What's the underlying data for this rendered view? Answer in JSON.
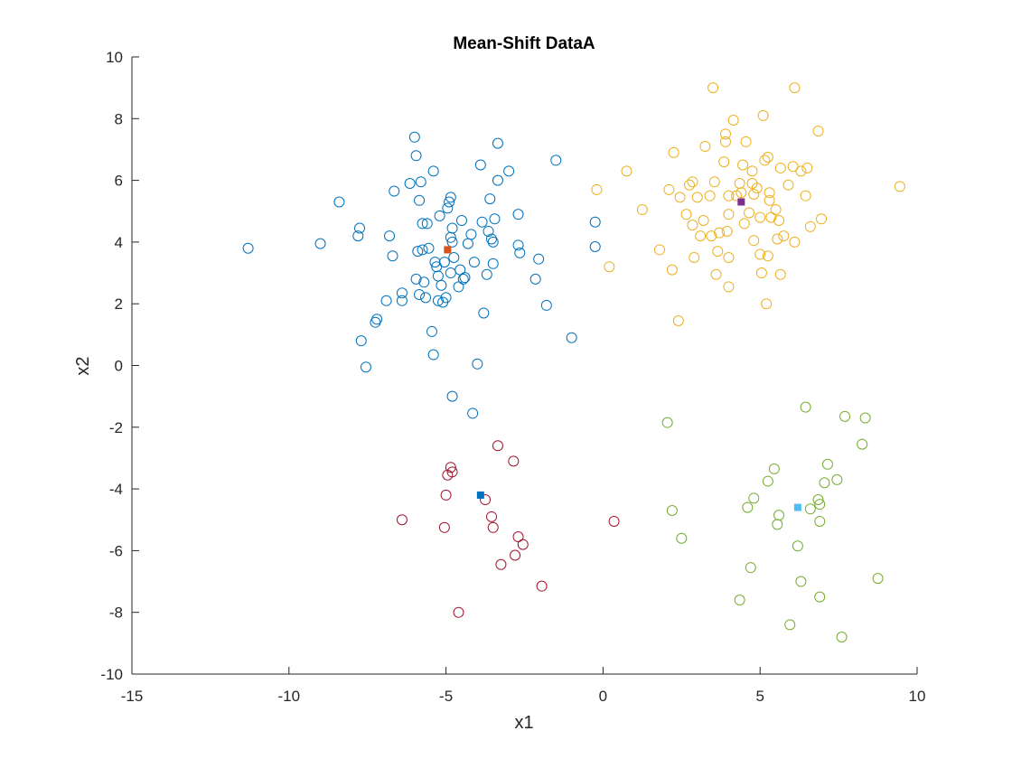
{
  "chart_data": {
    "type": "scatter",
    "title": "Mean-Shift DataA",
    "xlabel": "x1",
    "ylabel": "x2",
    "xlim": [
      -15,
      10
    ],
    "ylim": [
      -10,
      10
    ],
    "x_ticks": [
      "-15",
      "-10",
      "-5",
      "0",
      "5",
      "10"
    ],
    "y_ticks": [
      "-10",
      "-8",
      "-6",
      "-4",
      "-2",
      "0",
      "2",
      "4",
      "6",
      "8",
      "10"
    ],
    "grid": false,
    "series": [
      {
        "color": "#0072BD",
        "marker": "circle-open",
        "points": [
          [
            -11.3,
            3.8
          ],
          [
            -9.0,
            3.95
          ],
          [
            -8.4,
            5.3
          ],
          [
            -7.8,
            4.2
          ],
          [
            -7.75,
            4.45
          ],
          [
            -7.7,
            0.8
          ],
          [
            -7.55,
            -0.05
          ],
          [
            -7.2,
            1.5
          ],
          [
            -7.25,
            1.4
          ],
          [
            -6.9,
            2.1
          ],
          [
            -6.8,
            4.2
          ],
          [
            -6.7,
            3.55
          ],
          [
            -6.65,
            5.65
          ],
          [
            -6.4,
            2.1
          ],
          [
            -6.4,
            2.35
          ],
          [
            -6.15,
            5.9
          ],
          [
            -6.0,
            7.4
          ],
          [
            -5.95,
            6.8
          ],
          [
            -5.95,
            2.8
          ],
          [
            -5.9,
            3.7
          ],
          [
            -5.85,
            5.35
          ],
          [
            -5.85,
            2.3
          ],
          [
            -5.8,
            5.95
          ],
          [
            -5.75,
            4.6
          ],
          [
            -5.75,
            3.75
          ],
          [
            -5.7,
            2.7
          ],
          [
            -5.65,
            2.2
          ],
          [
            -5.6,
            4.6
          ],
          [
            -5.55,
            3.8
          ],
          [
            -5.45,
            1.1
          ],
          [
            -5.4,
            6.3
          ],
          [
            -5.4,
            0.35
          ],
          [
            -5.35,
            3.35
          ],
          [
            -5.3,
            3.2
          ],
          [
            -5.25,
            2.9
          ],
          [
            -5.25,
            2.1
          ],
          [
            -5.2,
            4.85
          ],
          [
            -5.15,
            2.6
          ],
          [
            -5.1,
            2.05
          ],
          [
            -5.05,
            3.35
          ],
          [
            -5.0,
            2.2
          ],
          [
            -4.95,
            5.1
          ],
          [
            -4.9,
            5.3
          ],
          [
            -4.85,
            5.45
          ],
          [
            -4.85,
            4.15
          ],
          [
            -4.85,
            3.0
          ],
          [
            -4.8,
            4.45
          ],
          [
            -4.8,
            4.0
          ],
          [
            -4.75,
            3.5
          ],
          [
            -4.8,
            -1.0
          ],
          [
            -4.6,
            2.55
          ],
          [
            -4.55,
            3.1
          ],
          [
            -4.5,
            4.7
          ],
          [
            -4.45,
            2.8
          ],
          [
            -4.4,
            2.85
          ],
          [
            -4.3,
            3.95
          ],
          [
            -4.2,
            4.25
          ],
          [
            -4.15,
            -1.55
          ],
          [
            -4.1,
            3.35
          ],
          [
            -4.0,
            0.05
          ],
          [
            -3.9,
            6.5
          ],
          [
            -3.85,
            4.65
          ],
          [
            -3.8,
            1.7
          ],
          [
            -3.7,
            2.95
          ],
          [
            -3.65,
            4.35
          ],
          [
            -3.6,
            5.4
          ],
          [
            -3.55,
            4.1
          ],
          [
            -3.5,
            4.0
          ],
          [
            -3.5,
            3.3
          ],
          [
            -3.45,
            4.75
          ],
          [
            -3.35,
            7.2
          ],
          [
            -3.35,
            6.0
          ],
          [
            -3.0,
            6.3
          ],
          [
            -2.7,
            4.9
          ],
          [
            -2.7,
            3.9
          ],
          [
            -2.65,
            3.65
          ],
          [
            -2.15,
            2.8
          ],
          [
            -2.05,
            3.45
          ],
          [
            -1.8,
            1.95
          ],
          [
            -1.5,
            6.65
          ],
          [
            -1.0,
            0.9
          ],
          [
            -0.25,
            4.65
          ],
          [
            -0.25,
            3.85
          ]
        ]
      },
      {
        "color": "#EDB120",
        "marker": "circle-open",
        "points": [
          [
            -0.2,
            5.7
          ],
          [
            0.2,
            3.2
          ],
          [
            0.75,
            6.3
          ],
          [
            1.25,
            5.05
          ],
          [
            1.8,
            3.75
          ],
          [
            2.1,
            5.7
          ],
          [
            2.2,
            3.1
          ],
          [
            2.25,
            6.9
          ],
          [
            2.4,
            1.45
          ],
          [
            2.45,
            5.45
          ],
          [
            2.65,
            4.9
          ],
          [
            2.75,
            5.85
          ],
          [
            2.85,
            4.55
          ],
          [
            2.85,
            5.95
          ],
          [
            2.9,
            3.5
          ],
          [
            3.0,
            5.45
          ],
          [
            3.1,
            4.2
          ],
          [
            3.2,
            4.7
          ],
          [
            3.25,
            7.1
          ],
          [
            3.4,
            5.5
          ],
          [
            3.45,
            4.2
          ],
          [
            3.5,
            9.0
          ],
          [
            3.55,
            5.95
          ],
          [
            3.6,
            2.95
          ],
          [
            3.65,
            3.7
          ],
          [
            3.7,
            4.3
          ],
          [
            3.85,
            6.6
          ],
          [
            3.9,
            7.5
          ],
          [
            3.9,
            7.25
          ],
          [
            3.95,
            4.35
          ],
          [
            4.0,
            5.5
          ],
          [
            4.0,
            4.9
          ],
          [
            4.0,
            3.5
          ],
          [
            4.0,
            2.55
          ],
          [
            4.15,
            7.95
          ],
          [
            4.25,
            5.5
          ],
          [
            4.35,
            5.9
          ],
          [
            4.4,
            5.6
          ],
          [
            4.45,
            6.5
          ],
          [
            4.5,
            4.6
          ],
          [
            4.55,
            7.25
          ],
          [
            4.65,
            4.95
          ],
          [
            4.75,
            6.3
          ],
          [
            4.75,
            5.9
          ],
          [
            4.8,
            5.55
          ],
          [
            4.8,
            4.05
          ],
          [
            4.9,
            5.75
          ],
          [
            5.0,
            4.8
          ],
          [
            5.0,
            3.6
          ],
          [
            5.05,
            3.0
          ],
          [
            5.1,
            8.1
          ],
          [
            5.15,
            6.65
          ],
          [
            5.2,
            2.0
          ],
          [
            5.25,
            6.75
          ],
          [
            5.3,
            5.6
          ],
          [
            5.3,
            5.35
          ],
          [
            5.35,
            4.8
          ],
          [
            5.25,
            3.55
          ],
          [
            5.5,
            5.05
          ],
          [
            5.55,
            4.1
          ],
          [
            5.6,
            4.7
          ],
          [
            5.65,
            6.4
          ],
          [
            5.65,
            2.95
          ],
          [
            5.75,
            4.2
          ],
          [
            5.9,
            5.85
          ],
          [
            6.05,
            6.45
          ],
          [
            6.1,
            9.0
          ],
          [
            6.1,
            4.0
          ],
          [
            6.3,
            6.3
          ],
          [
            6.45,
            5.5
          ],
          [
            6.5,
            6.4
          ],
          [
            6.6,
            4.5
          ],
          [
            6.85,
            7.6
          ],
          [
            6.95,
            4.75
          ],
          [
            9.45,
            5.8
          ]
        ]
      },
      {
        "color": "#A2142F",
        "marker": "circle-open",
        "points": [
          [
            -6.4,
            -5.0
          ],
          [
            -5.05,
            -5.25
          ],
          [
            -5.0,
            -4.2
          ],
          [
            -4.95,
            -3.55
          ],
          [
            -4.85,
            -3.3
          ],
          [
            -4.8,
            -3.45
          ],
          [
            -4.6,
            -8.0
          ],
          [
            -3.75,
            -4.35
          ],
          [
            -3.55,
            -4.9
          ],
          [
            -3.5,
            -5.25
          ],
          [
            -3.35,
            -2.6
          ],
          [
            -3.25,
            -6.45
          ],
          [
            -2.85,
            -3.1
          ],
          [
            -2.8,
            -6.15
          ],
          [
            -2.7,
            -5.55
          ],
          [
            -2.55,
            -5.8
          ],
          [
            -1.95,
            -7.15
          ],
          [
            0.35,
            -5.05
          ]
        ]
      },
      {
        "color": "#77AC30",
        "marker": "circle-open",
        "points": [
          [
            2.05,
            -1.85
          ],
          [
            2.2,
            -4.7
          ],
          [
            2.5,
            -5.6
          ],
          [
            4.35,
            -7.6
          ],
          [
            4.6,
            -4.6
          ],
          [
            4.7,
            -6.55
          ],
          [
            4.8,
            -4.3
          ],
          [
            5.25,
            -3.75
          ],
          [
            5.45,
            -3.35
          ],
          [
            5.55,
            -5.15
          ],
          [
            5.6,
            -4.85
          ],
          [
            5.95,
            -8.4
          ],
          [
            6.2,
            -5.85
          ],
          [
            6.3,
            -7.0
          ],
          [
            6.45,
            -1.35
          ],
          [
            6.6,
            -4.65
          ],
          [
            6.85,
            -4.35
          ],
          [
            6.9,
            -5.05
          ],
          [
            6.9,
            -4.5
          ],
          [
            6.9,
            -7.5
          ],
          [
            7.05,
            -3.8
          ],
          [
            7.15,
            -3.2
          ],
          [
            7.45,
            -3.7
          ],
          [
            7.6,
            -8.8
          ],
          [
            7.7,
            -1.65
          ],
          [
            8.25,
            -2.55
          ],
          [
            8.35,
            -1.7
          ],
          [
            8.75,
            -6.9
          ]
        ]
      }
    ],
    "centroids": [
      {
        "color": "#D95319",
        "x": -4.95,
        "y": 3.75
      },
      {
        "color": "#7E2F8E",
        "x": 4.4,
        "y": 5.3
      },
      {
        "color": "#0072BD",
        "x": -3.9,
        "y": -4.2
      },
      {
        "color": "#4DBEEE",
        "x": 6.2,
        "y": -4.6
      }
    ]
  }
}
